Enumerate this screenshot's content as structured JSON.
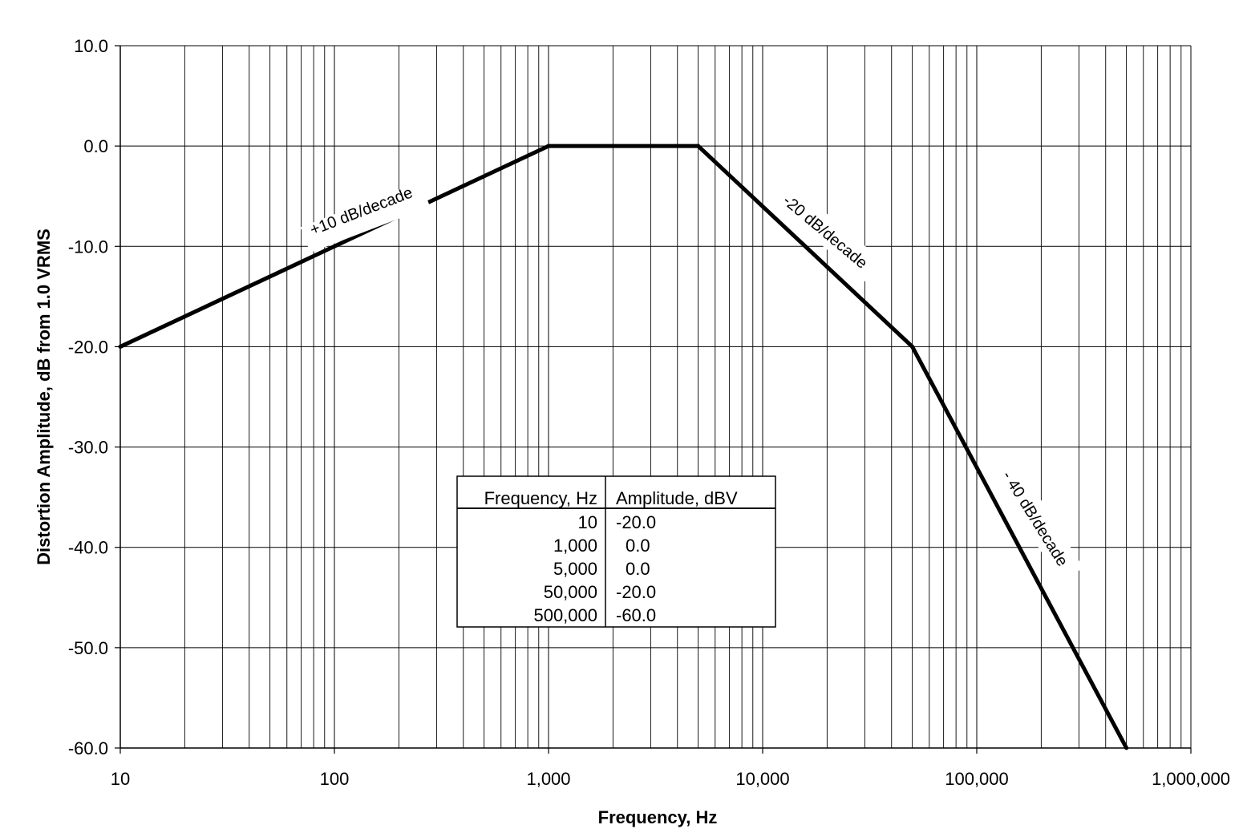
{
  "chart_data": {
    "type": "line",
    "xlabel": "Frequency, Hz",
    "ylabel": "Distortion Amplitude, dB from 1.0 VRMS",
    "x_scale": "log",
    "xlim": [
      10,
      1000000
    ],
    "ylim": [
      -60,
      10
    ],
    "x_ticks": [
      10,
      100,
      1000,
      10000,
      100000,
      1000000
    ],
    "x_tick_labels": [
      "10",
      "100",
      "1,000",
      "10,000",
      "100,000",
      "1,000,000"
    ],
    "y_ticks": [
      10,
      0,
      -10,
      -20,
      -30,
      -40,
      -50,
      -60
    ],
    "y_tick_labels": [
      "10.0",
      "0.0",
      "-10.0",
      "-20.0",
      "-30.0",
      "-40.0",
      "-50.0",
      "-60.0"
    ],
    "grid": true,
    "line_color": "#000000",
    "series": [
      {
        "x": [
          10,
          1000,
          5000,
          50000,
          500000
        ],
        "y": [
          -20,
          0,
          0,
          -20,
          -60
        ]
      }
    ],
    "annotations": [
      {
        "text": "+10 dB/decade"
      },
      {
        "text": "-20 dB/decade"
      },
      {
        "text": "- 40 dB/decade"
      }
    ],
    "table": {
      "headers": [
        "Frequency, Hz",
        "Amplitude, dBV"
      ],
      "rows": [
        [
          "10",
          "-20.0"
        ],
        [
          "1,000",
          "0.0"
        ],
        [
          "5,000",
          "0.0"
        ],
        [
          "50,000",
          "-20.0"
        ],
        [
          "500,000",
          "-60.0"
        ]
      ]
    }
  }
}
